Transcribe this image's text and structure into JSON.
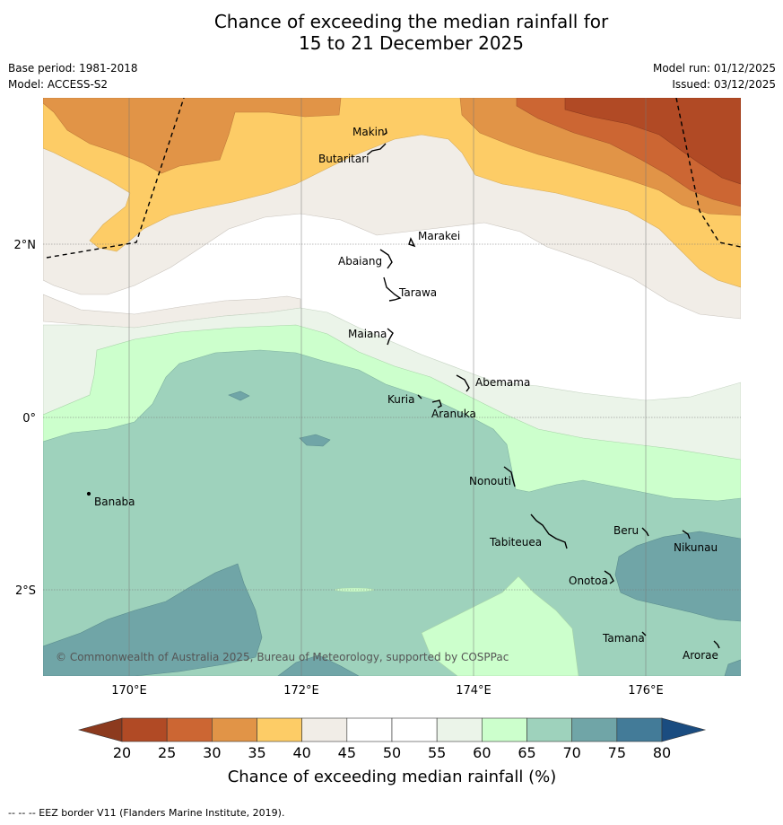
{
  "title": {
    "line1": "Chance of exceeding the median rainfall for",
    "line2": "15 to 21 December 2025"
  },
  "meta_left": {
    "base_period": "Base period: 1981-2018",
    "model": "Model: ACCESS-S2"
  },
  "meta_right": {
    "model_run": "Model run: 01/12/2025",
    "issued": "Issued: 03/12/2025"
  },
  "map": {
    "lat_labels": [
      "2°N",
      "0°",
      "2°S"
    ],
    "lon_labels": [
      "170°E",
      "172°E",
      "174°E",
      "176°E"
    ],
    "places": [
      "Makin",
      "Butaritari",
      "Marakei",
      "Abaiang",
      "Tarawa",
      "Maiana",
      "Abemama",
      "Kuria",
      "Aranuka",
      "Banaba",
      "Nonouti",
      "Tabiteuea",
      "Beru",
      "Nikunau",
      "Onotoa",
      "Tamana",
      "Arorae"
    ],
    "copyright": "© Commonwealth of Australia 2025, Bureau of Meteorology, supported by COSPPac"
  },
  "legend": {
    "ticks": [
      "20",
      "25",
      "30",
      "35",
      "40",
      "45",
      "50",
      "55",
      "60",
      "65",
      "70",
      "75",
      "80"
    ],
    "label": "Chance of exceeding median rainfall (%)",
    "colors": [
      "#b14a25",
      "#cc6633",
      "#e19447",
      "#fdcc66",
      "#f1ede7",
      "#ffffff",
      "#ffffff",
      "#ebf4e9",
      "#ccffcc",
      "#9ed2bc",
      "#70a5a7",
      "#437b98"
    ],
    "under_color": "#8c3a1e",
    "over_color": "#1a4c80"
  },
  "footnote": "--  --  -- EEZ border V11 (Flanders Marine Institute, 2019)."
}
